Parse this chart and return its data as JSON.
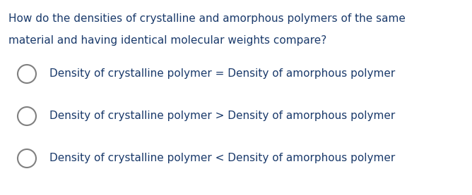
{
  "background_color": "#ffffff",
  "question_line1": "How do the densities of crystalline and amorphous polymers of the same",
  "question_line2": "material and having identical molecular weights compare?",
  "question_color": "#1a3a6b",
  "options": [
    "Density of crystalline polymer = Density of amorphous polymer",
    "Density of crystalline polymer > Density of amorphous polymer",
    "Density of crystalline polymer < Density of amorphous polymer"
  ],
  "option_color": "#1a3a6b",
  "circle_edge_color": "#808080",
  "figwidth": 6.68,
  "figheight": 2.77,
  "dpi": 100
}
